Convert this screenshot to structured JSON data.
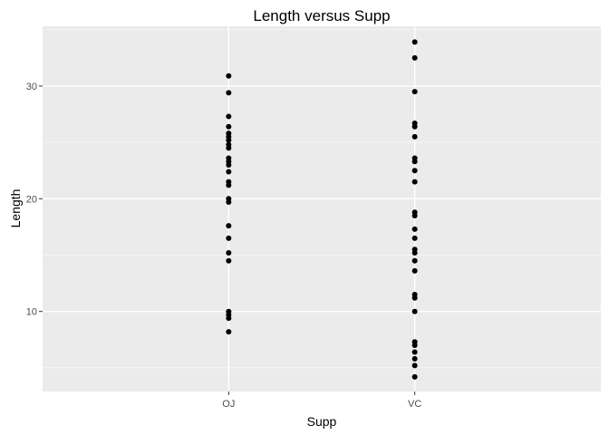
{
  "chart_data": {
    "type": "scatter",
    "title": "Length versus Supp",
    "xlabel": "Supp",
    "ylabel": "Length",
    "categories": [
      "OJ",
      "VC"
    ],
    "yticks": [
      10,
      20,
      30
    ],
    "ylim": [
      2.9,
      35.3
    ],
    "grid": true,
    "series": [
      {
        "category": "OJ",
        "values": [
          30.9,
          29.4,
          27.3,
          26.4,
          25.8,
          25.5,
          25.2,
          24.8,
          24.5,
          23.6,
          23.3,
          23.0,
          22.4,
          21.5,
          21.2,
          20.0,
          19.7,
          17.6,
          16.5,
          15.2,
          14.5,
          10.0,
          9.7,
          9.4,
          8.2
        ]
      },
      {
        "category": "VC",
        "values": [
          33.9,
          32.5,
          29.5,
          26.7,
          26.4,
          25.5,
          23.6,
          23.3,
          22.5,
          21.5,
          18.8,
          18.5,
          17.3,
          16.5,
          15.5,
          15.2,
          14.5,
          13.6,
          11.5,
          11.2,
          10.0,
          7.3,
          7.0,
          6.4,
          5.8,
          5.2,
          4.2
        ]
      }
    ]
  }
}
